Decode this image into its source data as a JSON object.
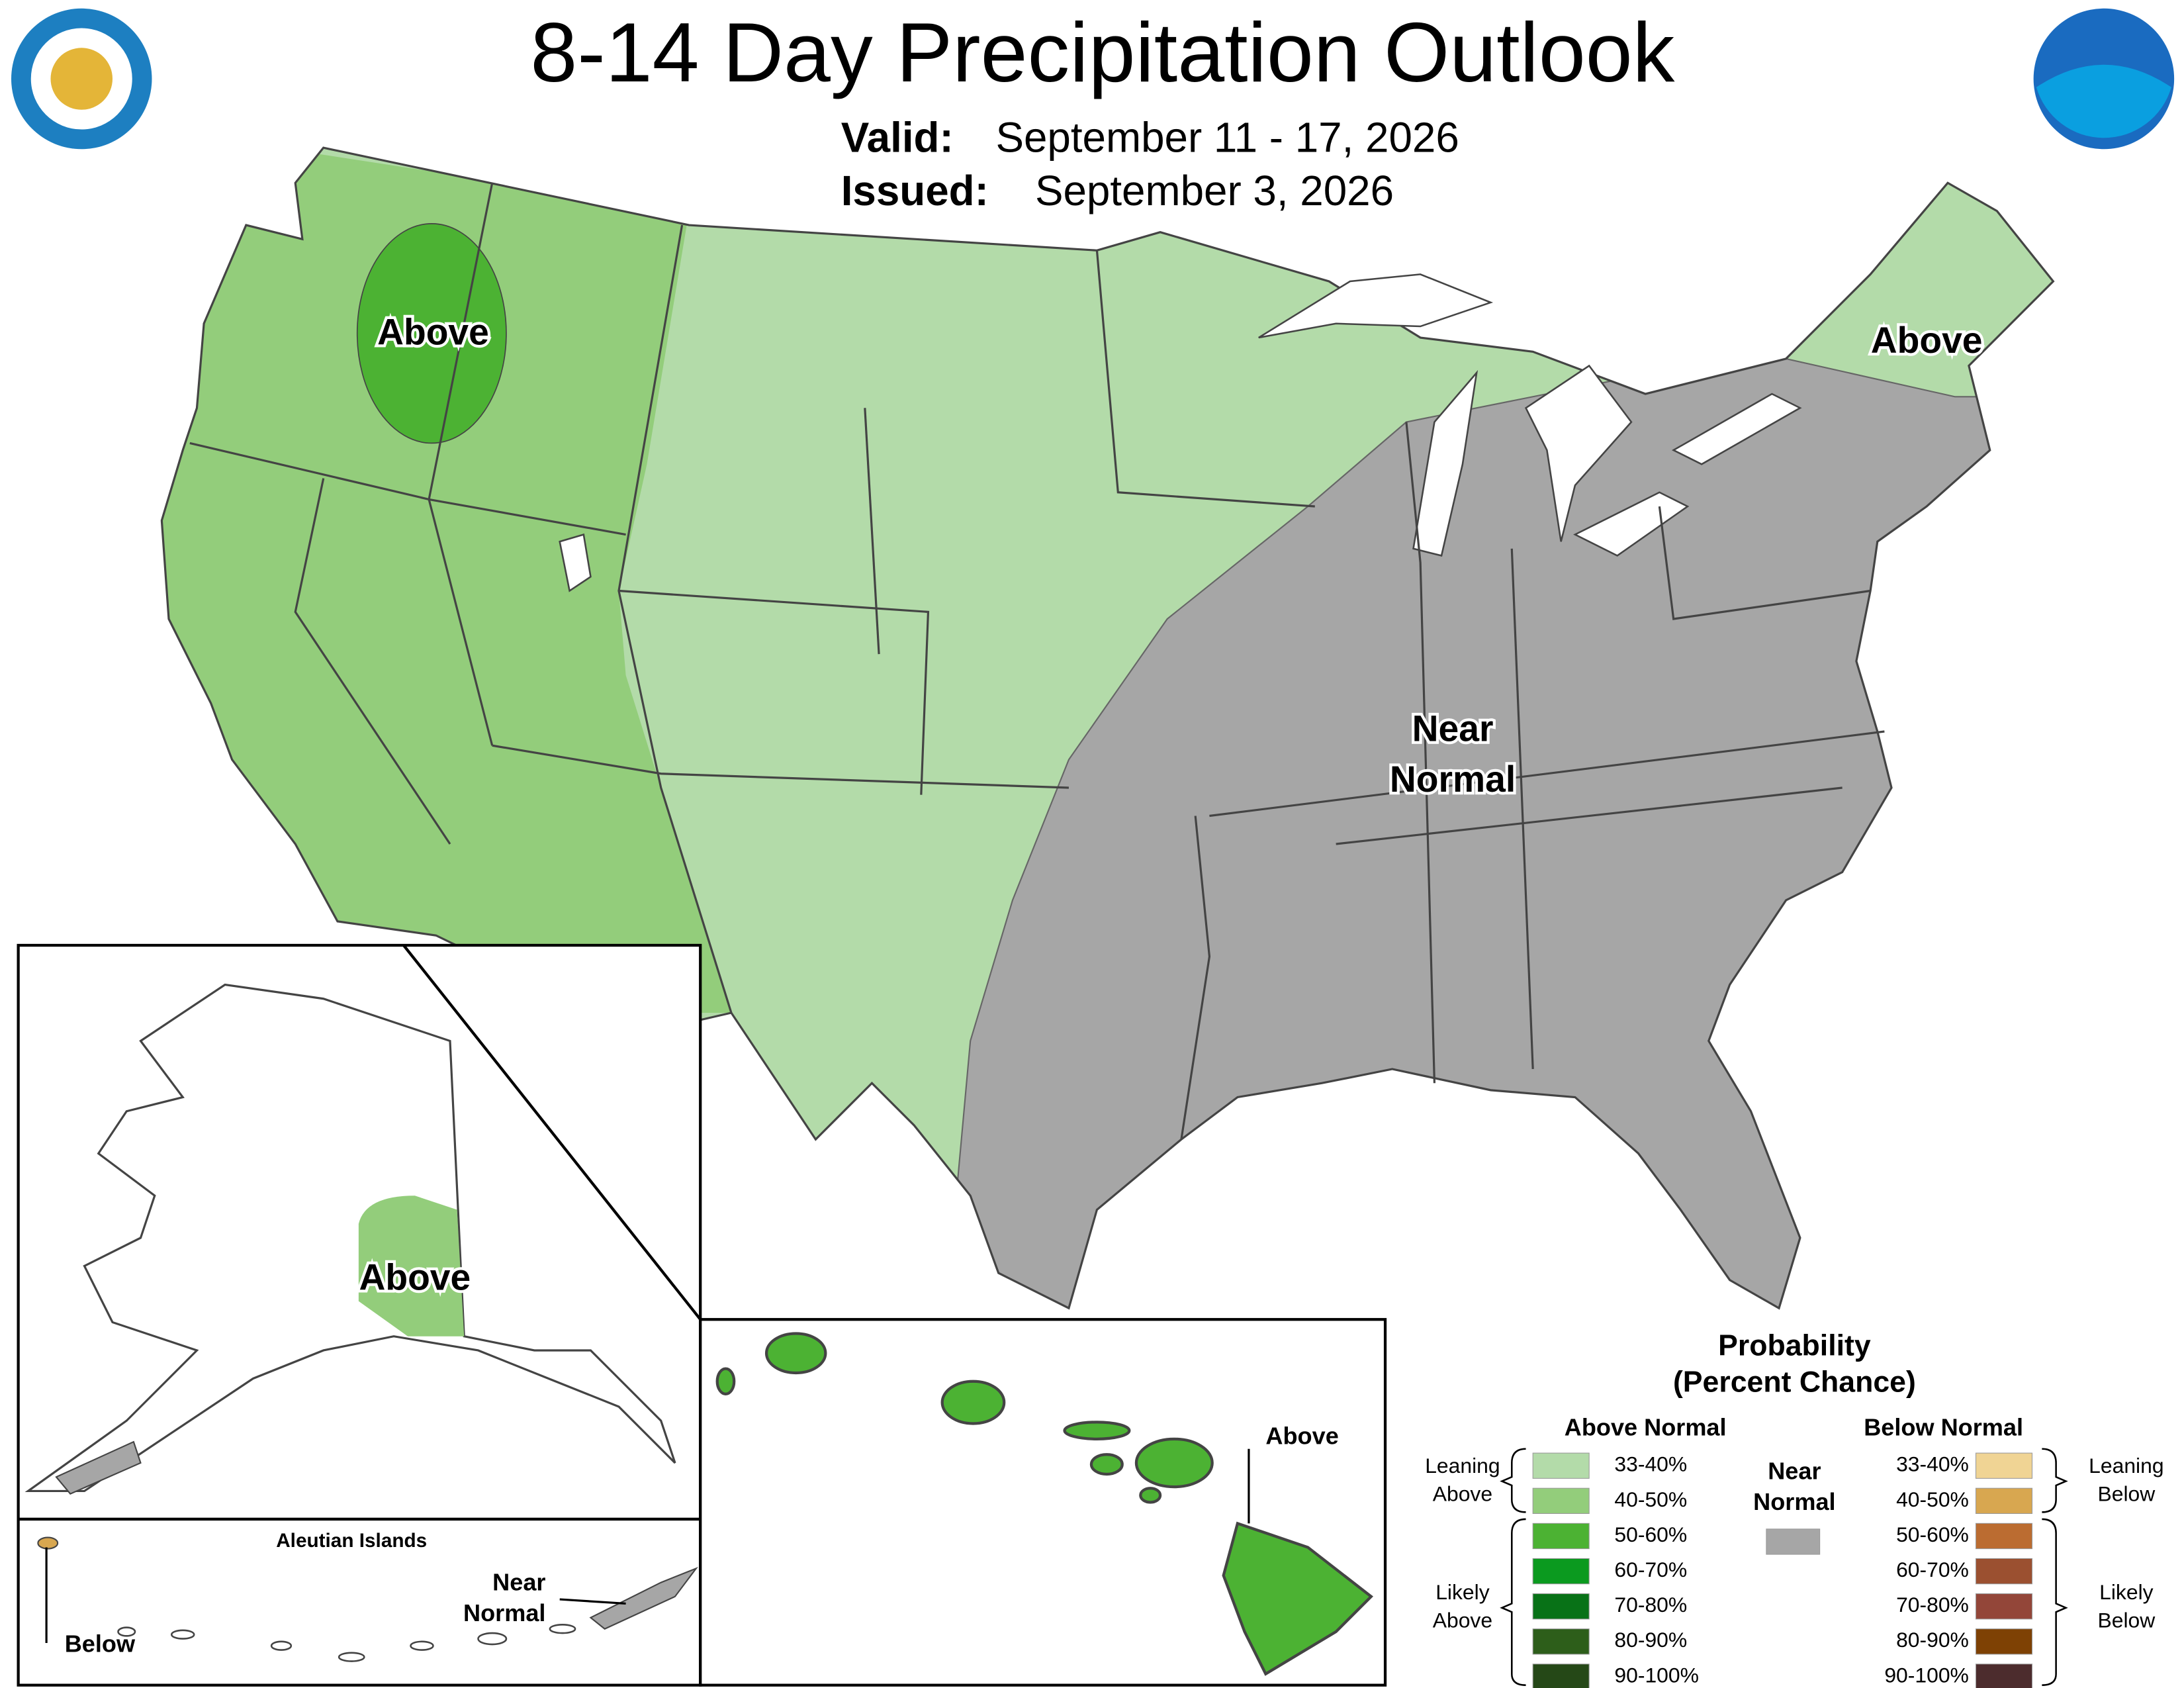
{
  "header": {
    "title": "8-14 Day Precipitation Outlook",
    "valid_label": "Valid:",
    "valid": "September 11 - 17, 2026",
    "issued_label": "Issued:",
    "issued": "September 3, 2026"
  },
  "conus": {
    "northwest_label": "Above",
    "northeast_label": "Above",
    "east_label": [
      "Near",
      "Normal"
    ]
  },
  "alaska": {
    "label": "Above"
  },
  "aleutians": {
    "title": "Aleutian Islands",
    "below_label": "Below",
    "near_label": [
      "Near",
      "Normal"
    ]
  },
  "hawaii": {
    "label": "Above"
  },
  "legend": {
    "title": [
      "Probability",
      "(Percent Chance)"
    ],
    "above_header": "Above Normal",
    "below_header": "Below Normal",
    "above": [
      {
        "label": "33-40%",
        "color": "#b3dba9"
      },
      {
        "label": "40-50%",
        "color": "#93cd7b"
      },
      {
        "label": "50-60%",
        "color": "#4cb233"
      },
      {
        "label": "60-70%",
        "color": "#0b9a1f"
      },
      {
        "label": "70-80%",
        "color": "#087217"
      },
      {
        "label": "80-90%",
        "color": "#2d5e1a"
      },
      {
        "label": "90-100%",
        "color": "#254817"
      }
    ],
    "below": [
      {
        "label": "33-40%",
        "color": "#f0d494"
      },
      {
        "label": "40-50%",
        "color": "#d8a750"
      },
      {
        "label": "50-60%",
        "color": "#bb6c31"
      },
      {
        "label": "60-70%",
        "color": "#9b5030"
      },
      {
        "label": "70-80%",
        "color": "#934639"
      },
      {
        "label": "80-90%",
        "color": "#7e4104"
      },
      {
        "label": "90-100%",
        "color": "#4c2c2d"
      }
    ],
    "near_normal": {
      "label": [
        "Near",
        "Normal"
      ],
      "color": "#a6a6a6"
    },
    "leaning_above": [
      "Leaning",
      "Above"
    ],
    "likely_above": [
      "Likely",
      "Above"
    ],
    "leaning_below": [
      "Leaning",
      "Below"
    ],
    "likely_below": [
      "Likely",
      "Below"
    ]
  }
}
